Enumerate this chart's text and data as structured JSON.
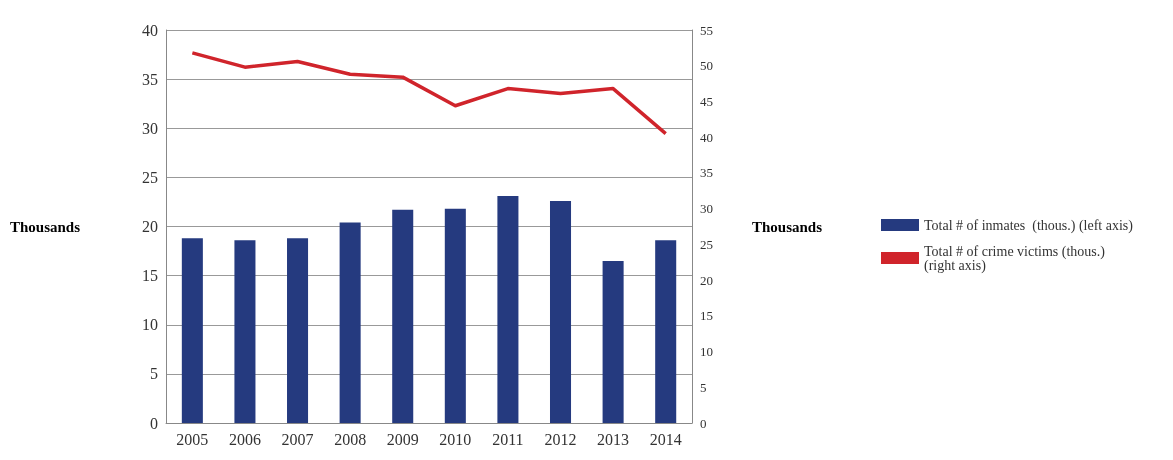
{
  "chart_data": {
    "type": "bar",
    "ylabel": "Thousands",
    "y2label": "Thousands",
    "categories": [
      "2005",
      "2006",
      "2007",
      "2008",
      "2009",
      "2010",
      "2011",
      "2012",
      "2013",
      "2014"
    ],
    "series": [
      {
        "name": "Total # of inmates  (thous.) (left axis)",
        "color": "#253a7f",
        "values": [
          18.8,
          18.6,
          18.8,
          20.4,
          21.7,
          21.8,
          23.1,
          22.6,
          16.5,
          18.6
        ]
      },
      {
        "name": "Total # of crime victims (thous.) (right axis)",
        "type": "line",
        "axis": "y2",
        "color": "#d0242b",
        "values": [
          51.8,
          49.8,
          50.6,
          48.8,
          48.4,
          44.4,
          46.8,
          46.1,
          46.8,
          40.5
        ]
      }
    ],
    "ylim": [
      0,
      40
    ],
    "yticks": [
      0,
      5,
      10,
      15,
      20,
      25,
      30,
      35,
      40
    ],
    "y2lim": [
      0,
      55
    ],
    "y2ticks": [
      0,
      5,
      10,
      15,
      20,
      25,
      30,
      35,
      40,
      45,
      50,
      55
    ],
    "grid": "y",
    "legend": "right",
    "marker": "none",
    "line_style": "solid"
  }
}
